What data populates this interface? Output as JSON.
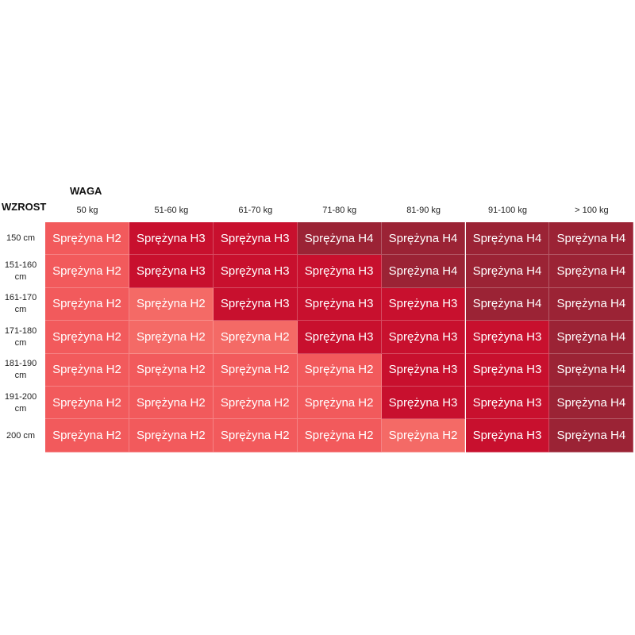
{
  "weight_title": "WAGA",
  "height_title": "WZROST",
  "columns": [
    "50 kg",
    "51-60 kg",
    "61-70 kg",
    "71-80 kg",
    "81-90 kg",
    "91-100 kg",
    "> 100 kg"
  ],
  "rows": [
    {
      "label": "150 cm",
      "cells": [
        "Sprężyna H2",
        "Sprężyna H3",
        "Sprężyna H3",
        "Sprężyna H4",
        "Sprężyna H4",
        "Sprężyna H4",
        "Sprężyna H4"
      ],
      "colors": [
        "#f25a5c",
        "#c8102e",
        "#c8102e",
        "#9b2335",
        "#9b2335",
        "#9b2335",
        "#9b2335"
      ]
    },
    {
      "label": "151-160 cm",
      "cells": [
        "Sprężyna H2",
        "Sprężyna H3",
        "Sprężyna H3",
        "Sprężyna H3",
        "Sprężyna H4",
        "Sprężyna H4",
        "Sprężyna H4"
      ],
      "colors": [
        "#f25a5c",
        "#c8102e",
        "#c8102e",
        "#c8102e",
        "#9b2335",
        "#9b2335",
        "#9b2335"
      ]
    },
    {
      "label": "161-170 cm",
      "cells": [
        "Sprężyna H2",
        "Sprężyna H2",
        "Sprężyna H3",
        "Sprężyna H3",
        "Sprężyna H3",
        "Sprężyna H4",
        "Sprężyna H4"
      ],
      "colors": [
        "#f25a5c",
        "#f46a66",
        "#c8102e",
        "#c8102e",
        "#c8102e",
        "#9b2335",
        "#9b2335"
      ]
    },
    {
      "label": "171-180 cm",
      "cells": [
        "Sprężyna H2",
        "Sprężyna H2",
        "Sprężyna H2",
        "Sprężyna H3",
        "Sprężyna H3",
        "Sprężyna H3",
        "Sprężyna H4"
      ],
      "colors": [
        "#f25a5c",
        "#f46a66",
        "#f46a66",
        "#c8102e",
        "#c8102e",
        "#c8102e",
        "#9b2335"
      ]
    },
    {
      "label": "181-190 cm",
      "cells": [
        "Sprężyna H2",
        "Sprężyna H2",
        "Sprężyna H2",
        "Sprężyna H2",
        "Sprężyna H3",
        "Sprężyna H3",
        "Sprężyna H4"
      ],
      "colors": [
        "#f25a5c",
        "#f25a5c",
        "#f25a5c",
        "#f25a5c",
        "#c8102e",
        "#c8102e",
        "#9b2335"
      ]
    },
    {
      "label": "191-200 cm",
      "cells": [
        "Sprężyna H2",
        "Sprężyna H2",
        "Sprężyna H2",
        "Sprężyna H2",
        "Sprężyna H3",
        "Sprężyna H3",
        "Sprężyna H4"
      ],
      "colors": [
        "#f25a5c",
        "#f25a5c",
        "#f25a5c",
        "#f25a5c",
        "#c8102e",
        "#c8102e",
        "#9b2335"
      ]
    },
    {
      "label": "200 cm",
      "cells": [
        "Sprężyna H2",
        "Sprężyna H2",
        "Sprężyna H2",
        "Sprężyna H2",
        "Sprężyna H2",
        "Sprężyna H3",
        "Sprężyna H4"
      ],
      "colors": [
        "#f25a5c",
        "#f25a5c",
        "#f25a5c",
        "#f25a5c",
        "#f46a66",
        "#c8102e",
        "#9b2335"
      ]
    }
  ]
}
